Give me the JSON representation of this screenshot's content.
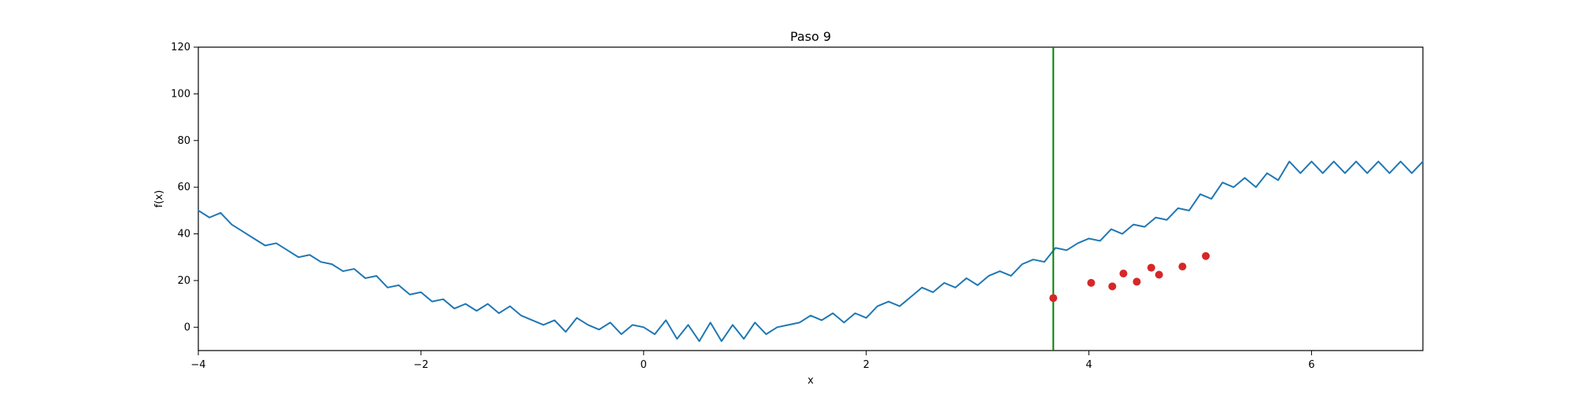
{
  "chart_data": {
    "type": "line",
    "title": "Paso 9",
    "xlabel": "x",
    "ylabel": "f(x)",
    "xlim": [
      -4,
      7
    ],
    "ylim": [
      -10,
      120
    ],
    "xticks": [
      -4,
      -2,
      0,
      2,
      4,
      6
    ],
    "yticks": [
      0,
      20,
      40,
      60,
      80,
      100,
      120
    ],
    "grid": false,
    "legend": "none",
    "series": [
      {
        "type": "line",
        "color": "#1f77b4",
        "x": [
          -4.0,
          -3.9,
          -3.8,
          -3.7,
          -3.6,
          -3.5,
          -3.4,
          -3.3,
          -3.2,
          -3.1,
          -3.0,
          -2.9,
          -2.8,
          -2.7,
          -2.6,
          -2.5,
          -2.4,
          -2.3,
          -2.2,
          -2.1,
          -2.0,
          -1.9,
          -1.8,
          -1.7,
          -1.6,
          -1.5,
          -1.4,
          -1.3,
          -1.2,
          -1.1,
          -1.0,
          -0.9,
          -0.8,
          -0.7,
          -0.6,
          -0.5,
          -0.4,
          -0.3,
          -0.2,
          -0.1,
          0.0,
          0.1,
          0.2,
          0.3,
          0.4,
          0.5,
          0.6,
          0.7,
          0.8,
          0.9,
          1.0,
          1.1,
          1.2,
          1.3,
          1.4,
          1.5,
          1.6,
          1.7,
          1.8,
          1.9,
          2.0,
          2.1,
          2.2,
          2.3,
          2.4,
          2.5,
          2.6,
          2.7,
          2.8,
          2.9,
          3.0,
          3.1,
          3.2,
          3.3,
          3.4,
          3.5,
          3.6,
          3.7,
          3.8,
          3.9,
          4.0,
          4.1,
          4.2,
          4.3,
          4.4,
          4.5,
          4.6,
          4.7,
          4.8,
          4.9,
          5.0,
          5.1,
          5.2,
          5.3,
          5.4,
          5.5,
          5.6,
          5.7,
          5.8,
          5.9,
          6.0,
          6.1,
          6.2,
          6.3,
          6.4,
          6.5,
          6.6,
          6.7,
          6.8,
          6.9,
          7.0
        ],
        "y": [
          50,
          47,
          49,
          44,
          41,
          38,
          35,
          36,
          33,
          30,
          31,
          28,
          27,
          24,
          25,
          21,
          22,
          17,
          18,
          14,
          15,
          11,
          12,
          8,
          10,
          7,
          10,
          6,
          9,
          5,
          3,
          1,
          3,
          -2,
          4,
          1,
          -1,
          2,
          -3,
          1,
          0,
          -3,
          3,
          -5,
          1,
          -6,
          2,
          -6,
          1,
          -5,
          2,
          -3,
          0,
          1,
          2,
          5,
          3,
          6,
          2,
          6,
          4,
          9,
          11,
          9,
          13,
          17,
          15,
          19,
          17,
          21,
          18,
          22,
          24,
          22,
          27,
          29,
          28,
          34,
          33,
          36,
          38,
          37,
          42,
          40,
          44,
          43,
          47,
          46,
          51,
          50,
          57,
          55,
          62,
          60,
          64,
          60,
          66,
          63,
          71,
          66,
          71,
          66,
          71,
          66,
          71,
          66,
          71,
          66,
          71,
          66,
          71
        ]
      }
    ],
    "vline": {
      "x": 3.68,
      "color": "#008000"
    },
    "points": {
      "color": "#d62728",
      "x": [
        3.68,
        4.02,
        4.21,
        4.31,
        4.43,
        4.56,
        4.63,
        4.84,
        5.05
      ],
      "y": [
        12.5,
        19,
        17.5,
        23,
        19.5,
        25.5,
        22.5,
        26,
        30.5
      ]
    }
  }
}
